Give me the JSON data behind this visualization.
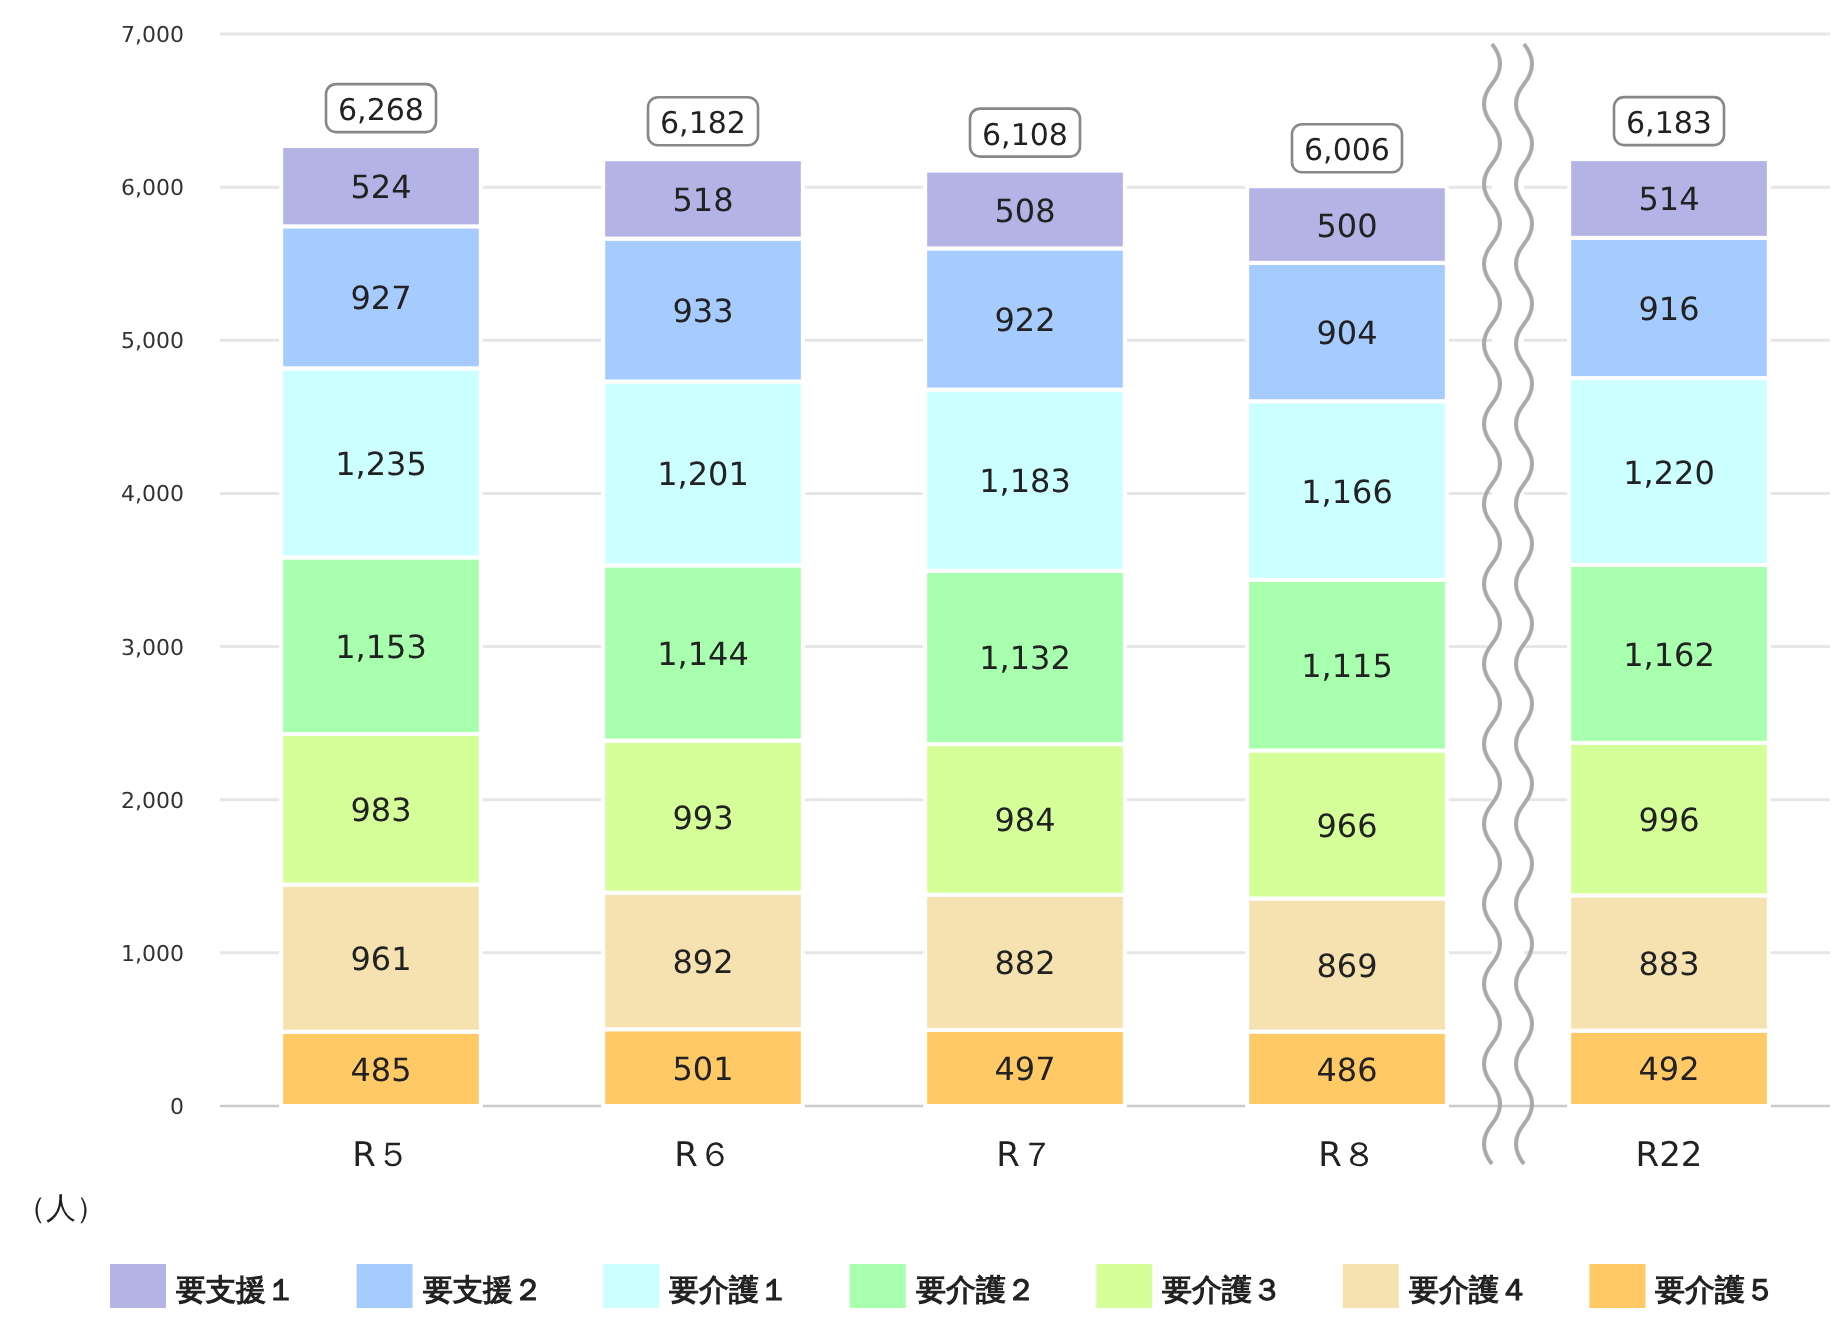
{
  "chart_data": {
    "type": "bar",
    "stacked": true,
    "ylabel": "（人）",
    "categories": [
      "R５",
      "R６",
      "R７",
      "R８",
      "R22"
    ],
    "series": [
      {
        "name": "要介護５",
        "color": "#ffc966",
        "values": [
          485,
          501,
          497,
          486,
          492
        ],
        "value_labels": [
          "485",
          "501",
          "497",
          "486",
          "492"
        ]
      },
      {
        "name": "要介護４",
        "color": "#f5e2b0",
        "values": [
          961,
          892,
          882,
          869,
          883
        ],
        "value_labels": [
          "961",
          "892",
          "882",
          "869",
          "883"
        ]
      },
      {
        "name": "要介護３",
        "color": "#d4ff99",
        "values": [
          983,
          993,
          984,
          966,
          996
        ],
        "value_labels": [
          "983",
          "993",
          "984",
          "966",
          "996"
        ]
      },
      {
        "name": "要介護２",
        "color": "#a8ffad",
        "values": [
          1153,
          1144,
          1132,
          1115,
          1162
        ],
        "value_labels": [
          "1,153",
          "1,144",
          "1,132",
          "1,115",
          "1,162"
        ]
      },
      {
        "name": "要介護１",
        "color": "#ccffff",
        "values": [
          1235,
          1201,
          1183,
          1166,
          1220
        ],
        "value_labels": [
          "1,235",
          "1,201",
          "1,183",
          "1,166",
          "1,220"
        ]
      },
      {
        "name": "要支援２",
        "color": "#a6cbff",
        "values": [
          927,
          933,
          922,
          904,
          916
        ],
        "value_labels": [
          "927",
          "933",
          "922",
          "904",
          "916"
        ]
      },
      {
        "name": "要支援１",
        "color": "#b3b3e6",
        "values": [
          524,
          518,
          508,
          500,
          514
        ],
        "value_labels": [
          "524",
          "518",
          "508",
          "500",
          "514"
        ]
      }
    ],
    "totals": [
      "6,268",
      "6,182",
      "6,108",
      "6,006",
      "6,183"
    ],
    "ylim": [
      0,
      7000
    ],
    "yticks": [
      0,
      {
        "value": 1000,
        "label": "1,000"
      },
      {
        "value": 2000,
        "label": "2,000"
      },
      {
        "value": 3000,
        "label": "3,000"
      },
      {
        "value": 4000,
        "label": "4,000"
      },
      {
        "value": 5000,
        "label": "5,000"
      },
      {
        "value": 6000,
        "label": "6,000"
      },
      {
        "value": 7000,
        "label": "7,000"
      }
    ],
    "grid": "y",
    "legend": "bottom"
  }
}
